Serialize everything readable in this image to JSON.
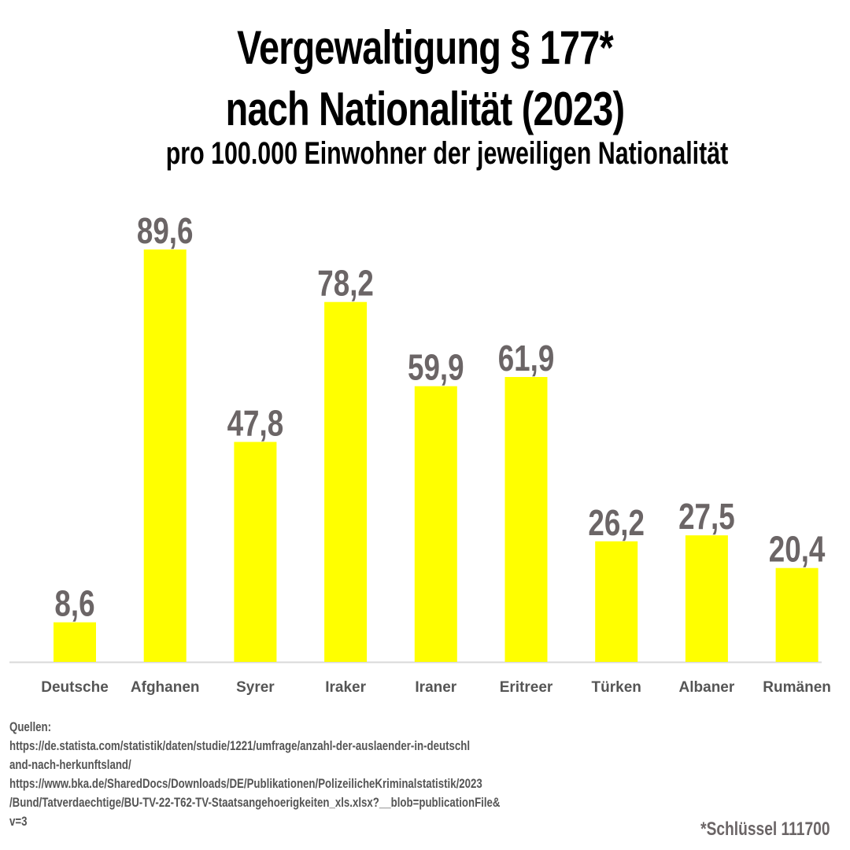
{
  "chart_data": {
    "type": "bar",
    "title_line1": "Vergewaltigung § 177*",
    "title_line2": "nach Nationalität (2023)",
    "subtitle": "pro 100.000 Einwohner der jeweiligen Nationalität",
    "categories": [
      "Deutsche",
      "Afghanen",
      "Syrer",
      "Iraker",
      "Iraner",
      "Eritreer",
      "Türken",
      "Albaner",
      "Rumänen"
    ],
    "values": [
      8.6,
      89.6,
      47.8,
      78.2,
      59.9,
      61.9,
      26.2,
      27.5,
      20.4
    ],
    "value_labels": [
      "8,6",
      "89,6",
      "47,8",
      "78,2",
      "59,9",
      "61,9",
      "26,2",
      "27,5",
      "20,4"
    ],
    "ylim": [
      0,
      89.6
    ],
    "grid": false,
    "bar_color": "#ffff00",
    "value_label_color": "#6b6566",
    "category_label_color": "#555555"
  },
  "sources": {
    "heading": "Quellen:",
    "lines": [
      "https://de.statista.com/statistik/daten/studie/1221/umfrage/anzahl-der-auslaender-in-deutschl",
      "and-nach-herkunftsland/",
      "https://www.bka.de/SharedDocs/Downloads/DE/Publikationen/PolizeilicheKriminalstatistik/2023",
      "/Bund/Tatverdaechtige/BU-TV-22-T62-TV-Staatsangehoerigkeiten_xls.xlsx?__blob=publicationFile&",
      "v=3"
    ]
  },
  "footnote": "*Schlüssel 111700"
}
